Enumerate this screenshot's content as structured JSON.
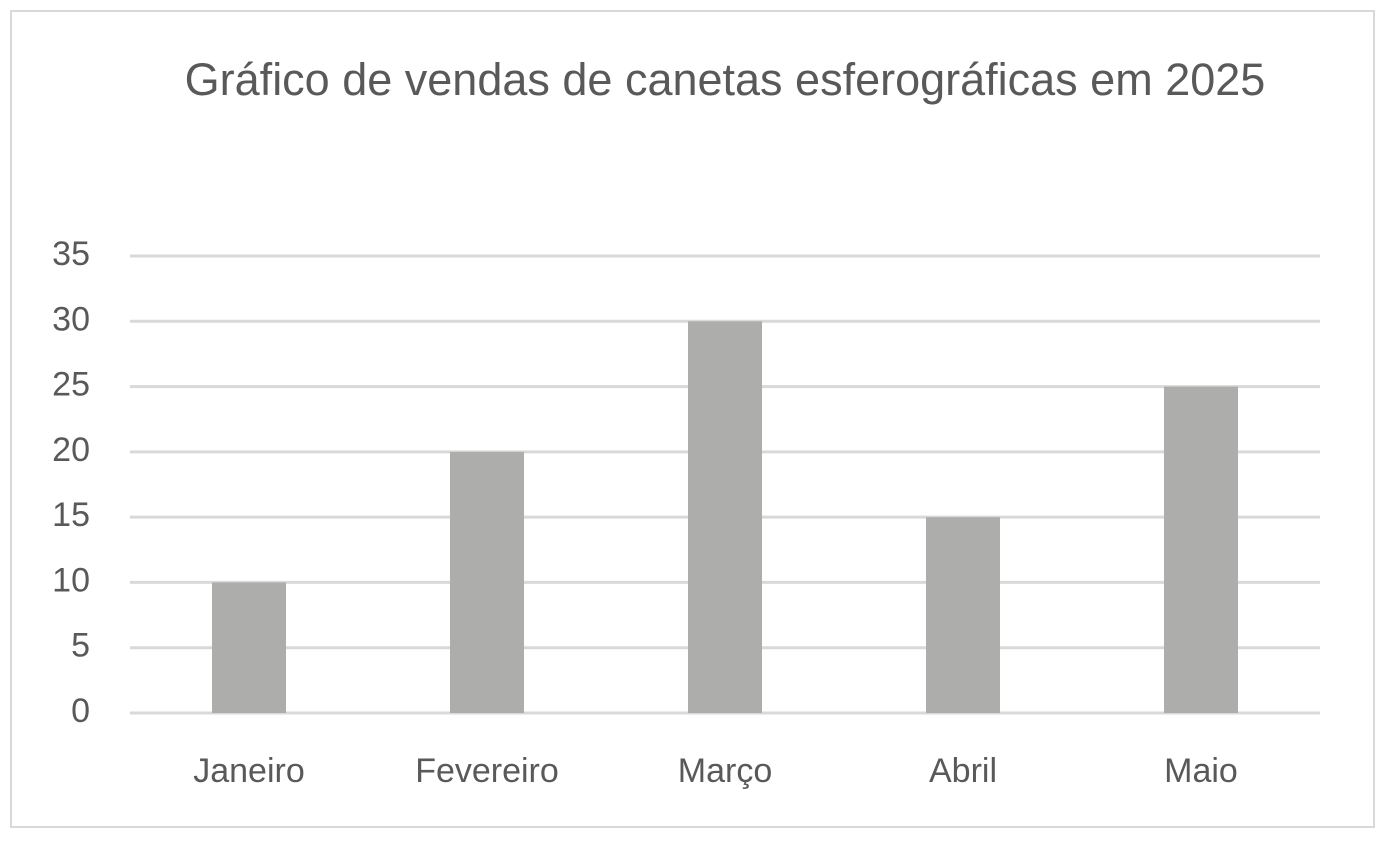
{
  "chart_data": {
    "type": "bar",
    "title": "Gráfico de vendas de canetas esferográficas em 2025",
    "categories": [
      "Janeiro",
      "Fevereiro",
      "Março",
      "Abril",
      "Maio"
    ],
    "values": [
      10,
      20,
      30,
      15,
      25
    ],
    "color": "#adadab",
    "ylim": [
      0,
      35
    ],
    "yticks": [
      0,
      5,
      10,
      15,
      20,
      25,
      30,
      35
    ],
    "grid": true
  }
}
